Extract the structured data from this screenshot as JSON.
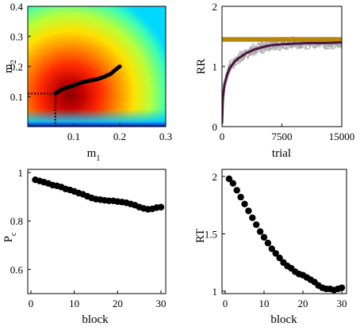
{
  "colors": {
    "black": "#000000",
    "gold": "#b8860b",
    "purple": "#4a1540",
    "gray": "#a9a9a9"
  },
  "chart_data": [
    {
      "type": "heatmap",
      "panel": "top-left",
      "xlabel": "m",
      "xlabel_sub": "1",
      "ylabel": "m",
      "ylabel_sub": "2",
      "xlim": [
        0,
        0.3
      ],
      "ylim": [
        0,
        0.4
      ],
      "xticks": [
        "0.1",
        "0.2",
        "0.3"
      ],
      "yticks": [
        "0.1",
        "0.2",
        "0.3",
        "0.4"
      ],
      "colormap": "jet",
      "peak": {
        "x": 0.06,
        "y": 0.11
      },
      "trajectory": {
        "x": [
          0.06,
          0.075,
          0.09,
          0.105,
          0.12,
          0.135,
          0.15,
          0.165,
          0.18,
          0.19,
          0.2
        ],
        "y": [
          0.11,
          0.125,
          0.132,
          0.14,
          0.148,
          0.153,
          0.157,
          0.165,
          0.175,
          0.188,
          0.2
        ]
      },
      "marker_lines": {
        "x": 0.06,
        "y": 0.11
      }
    },
    {
      "type": "line",
      "panel": "top-right",
      "xlabel": "trial",
      "ylabel": "RR",
      "xlim": [
        0,
        15000
      ],
      "ylim": [
        0,
        2
      ],
      "xticks": [
        "0",
        "7500",
        "15000"
      ],
      "yticks": [
        "0",
        "1",
        "2"
      ],
      "series": [
        {
          "role": "optimum",
          "color": "gold",
          "x": [
            0,
            15000
          ],
          "y": [
            1.45,
            1.45
          ]
        },
        {
          "role": "mean",
          "color": "purple",
          "x": [
            0,
            100,
            300,
            600,
            1000,
            1500,
            2000,
            3000,
            4000,
            5000,
            6000,
            7500,
            9000,
            11000,
            13000,
            15000
          ],
          "y": [
            0.05,
            0.45,
            0.7,
            0.85,
            0.98,
            1.07,
            1.13,
            1.22,
            1.28,
            1.32,
            1.35,
            1.37,
            1.38,
            1.39,
            1.39,
            1.4
          ]
        }
      ]
    },
    {
      "type": "scatter",
      "panel": "bottom-left",
      "xlabel": "block",
      "ylabel": "P",
      "ylabel_sub": "c",
      "xlim": [
        0,
        30
      ],
      "ylim": [
        0.5,
        1
      ],
      "xticks": [
        "0",
        "10",
        "20",
        "30"
      ],
      "yticks": [
        "0.6",
        "0.8",
        "1"
      ],
      "x": [
        1,
        2,
        3,
        4,
        5,
        6,
        7,
        8,
        9,
        10,
        11,
        12,
        13,
        14,
        15,
        16,
        17,
        18,
        19,
        20,
        21,
        22,
        23,
        24,
        25,
        26,
        27,
        28,
        29,
        30
      ],
      "y": [
        0.97,
        0.965,
        0.96,
        0.955,
        0.948,
        0.945,
        0.94,
        0.932,
        0.928,
        0.922,
        0.915,
        0.91,
        0.902,
        0.895,
        0.89,
        0.888,
        0.885,
        0.883,
        0.883,
        0.88,
        0.878,
        0.875,
        0.87,
        0.865,
        0.857,
        0.852,
        0.848,
        0.85,
        0.855,
        0.857
      ]
    },
    {
      "type": "scatter",
      "panel": "bottom-right",
      "xlabel": "block",
      "ylabel": "RT",
      "xlim": [
        0,
        30
      ],
      "ylim": [
        1,
        2
      ],
      "xticks": [
        "0",
        "10",
        "20",
        "30"
      ],
      "yticks": [
        "1",
        "1.5",
        "2"
      ],
      "x": [
        1,
        2,
        3,
        4,
        5,
        6,
        7,
        8,
        9,
        10,
        11,
        12,
        13,
        14,
        15,
        16,
        17,
        18,
        19,
        20,
        21,
        22,
        23,
        24,
        25,
        26,
        27,
        28,
        29,
        30
      ],
      "y": [
        1.98,
        1.94,
        1.88,
        1.82,
        1.76,
        1.7,
        1.64,
        1.58,
        1.52,
        1.47,
        1.42,
        1.37,
        1.33,
        1.29,
        1.25,
        1.22,
        1.2,
        1.17,
        1.15,
        1.14,
        1.12,
        1.1,
        1.08,
        1.05,
        1.03,
        1.02,
        1.02,
        1.01,
        1.02,
        1.03
      ]
    }
  ]
}
